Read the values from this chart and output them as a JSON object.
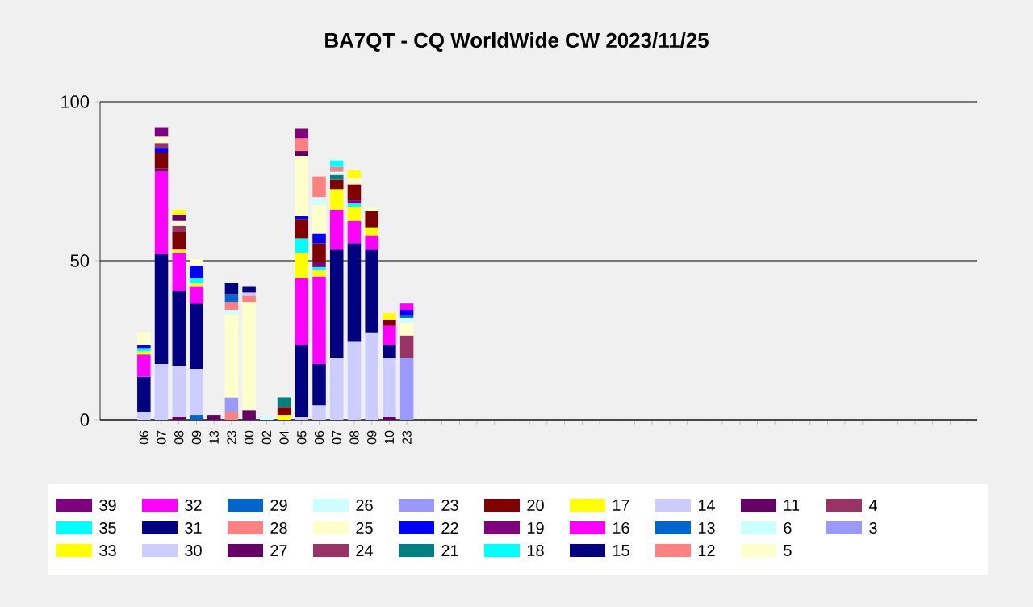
{
  "chart_data": {
    "type": "bar",
    "title": "BA7QT - CQ WorldWide CW 2023/11/25",
    "stacked": true,
    "grid": "y",
    "legend": "bottom",
    "ylim": [
      0,
      100
    ],
    "yticks": [
      0,
      50,
      100
    ],
    "categories": [
      "06",
      "07",
      "08",
      "09",
      "13",
      "23",
      "00",
      "02",
      "04",
      "05",
      "06",
      "07",
      "08",
      "09",
      "10",
      "23",
      null,
      null,
      null,
      null,
      null,
      null,
      null,
      null,
      null,
      null,
      null,
      null,
      null,
      null,
      null,
      null,
      null,
      null,
      null,
      null,
      null,
      null,
      null,
      null,
      null,
      null,
      null,
      null,
      null,
      null,
      null,
      null
    ],
    "series": [
      {
        "name": "3",
        "color": "#9999ff",
        "values": [
          null,
          null,
          null,
          null,
          null,
          null,
          null,
          null,
          null,
          null,
          null,
          null,
          null,
          null,
          null,
          19.5,
          null,
          null,
          null,
          null,
          null,
          null,
          null,
          null,
          null,
          null,
          null,
          null,
          null,
          null,
          null,
          null,
          null,
          null,
          null,
          null,
          null,
          null,
          null,
          null,
          null,
          null,
          null,
          null,
          null,
          null,
          null,
          null
        ]
      },
      {
        "name": "4",
        "color": "#993366",
        "values": [
          null,
          null,
          null,
          null,
          null,
          null,
          null,
          null,
          null,
          null,
          null,
          null,
          null,
          null,
          null,
          7,
          null,
          null,
          null,
          null,
          null,
          null,
          null,
          null,
          null,
          null,
          null,
          null,
          null,
          null,
          null,
          null,
          null,
          null,
          null,
          null,
          null,
          null,
          null,
          null,
          null,
          null,
          null,
          null,
          null,
          null,
          null,
          null
        ]
      },
      {
        "name": "5",
        "color": "#ffffcc",
        "values": [
          null,
          null,
          null,
          null,
          null,
          null,
          null,
          null,
          null,
          null,
          null,
          null,
          null,
          null,
          null,
          4,
          null,
          null,
          null,
          null,
          null,
          null,
          null,
          null,
          null,
          null,
          null,
          null,
          null,
          null,
          null,
          null,
          null,
          null,
          null,
          null,
          null,
          null,
          null,
          null,
          null,
          null,
          null,
          null,
          null,
          null,
          null,
          null
        ]
      },
      {
        "name": "6",
        "color": "#ccffff",
        "values": [
          null,
          null,
          null,
          null,
          null,
          null,
          null,
          null,
          null,
          null,
          null,
          null,
          null,
          null,
          null,
          1.5,
          null,
          null,
          null,
          null,
          null,
          null,
          null,
          null,
          null,
          null,
          null,
          null,
          null,
          null,
          null,
          null,
          null,
          null,
          null,
          null,
          null,
          null,
          null,
          null,
          null,
          null,
          null,
          null,
          null,
          null,
          null,
          null
        ]
      },
      {
        "name": "11",
        "color": "#660066",
        "values": [
          null,
          null,
          1,
          null,
          1.5,
          null,
          3,
          null,
          null,
          null,
          null,
          null,
          null,
          null,
          1,
          null,
          null,
          null,
          null,
          null,
          null,
          null,
          null,
          null,
          null,
          null,
          null,
          null,
          null,
          null,
          null,
          null,
          null,
          null,
          null,
          null,
          null,
          null,
          null,
          null,
          null,
          null,
          null,
          null,
          null,
          null,
          null,
          null
        ]
      },
      {
        "name": "12",
        "color": "#ff8080",
        "values": [
          null,
          null,
          null,
          null,
          null,
          2.5,
          null,
          null,
          null,
          null,
          null,
          null,
          null,
          null,
          null,
          null,
          null,
          null,
          null,
          null,
          null,
          null,
          null,
          null,
          null,
          null,
          null,
          null,
          null,
          null,
          null,
          null,
          null,
          null,
          null,
          null,
          null,
          null,
          null,
          null,
          null,
          null,
          null,
          null,
          null,
          null,
          null,
          null
        ]
      },
      {
        "name": "13",
        "color": "#0066cc",
        "values": [
          null,
          null,
          null,
          1.5,
          null,
          null,
          null,
          null,
          null,
          null,
          null,
          null,
          null,
          null,
          null,
          1,
          null,
          null,
          null,
          null,
          null,
          null,
          null,
          null,
          null,
          null,
          null,
          null,
          null,
          null,
          null,
          null,
          null,
          null,
          null,
          null,
          null,
          null,
          null,
          null,
          null,
          null,
          null,
          null,
          null,
          null,
          null,
          null
        ]
      },
      {
        "name": "14",
        "color": "#ccccff",
        "values": [
          2.5,
          17.5,
          16,
          14.5,
          null,
          null,
          null,
          null,
          null,
          1,
          4.5,
          19.5,
          24.5,
          27.5,
          18.5,
          null,
          null,
          null,
          null,
          null,
          null,
          null,
          null,
          null,
          null,
          null,
          null,
          null,
          null,
          null,
          null,
          null,
          null,
          null,
          null,
          null,
          null,
          null,
          null,
          null,
          null,
          null,
          null,
          null,
          null,
          null,
          null,
          null
        ]
      },
      {
        "name": "15",
        "color": "#000080",
        "values": [
          11,
          34.5,
          23.5,
          20.5,
          null,
          null,
          null,
          null,
          null,
          22.5,
          13,
          34,
          31,
          26,
          4,
          null,
          null,
          null,
          null,
          null,
          null,
          null,
          null,
          null,
          null,
          null,
          null,
          null,
          null,
          null,
          null,
          null,
          null,
          null,
          null,
          null,
          null,
          null,
          null,
          null,
          null,
          null,
          null,
          null,
          null,
          null,
          null,
          null
        ]
      },
      {
        "name": "16",
        "color": "#ff00ff",
        "values": [
          7,
          26,
          12,
          5.5,
          null,
          null,
          null,
          null,
          null,
          21,
          27.5,
          12.5,
          7,
          4.5,
          6,
          null,
          null,
          null,
          null,
          null,
          null,
          null,
          null,
          null,
          null,
          null,
          null,
          null,
          null,
          null,
          null,
          null,
          null,
          null,
          null,
          null,
          null,
          null,
          null,
          null,
          null,
          null,
          null,
          null,
          null,
          null,
          null,
          null
        ]
      },
      {
        "name": "17",
        "color": "#ffff00",
        "values": [
          1,
          null,
          1,
          1,
          null,
          null,
          null,
          null,
          1.5,
          8,
          2,
          6.5,
          4.5,
          2.5,
          null,
          null,
          null,
          null,
          null,
          null,
          null,
          null,
          null,
          null,
          null,
          null,
          null,
          null,
          null,
          null,
          null,
          null,
          null,
          null,
          null,
          null,
          null,
          null,
          null,
          null,
          null,
          null,
          null,
          null,
          null,
          null,
          null,
          null
        ]
      },
      {
        "name": "18",
        "color": "#00ffff",
        "values": [
          1,
          null,
          null,
          1.5,
          null,
          null,
          null,
          null,
          null,
          4.5,
          1,
          null,
          1,
          null,
          null,
          null,
          null,
          null,
          null,
          null,
          null,
          null,
          null,
          null,
          null,
          null,
          null,
          null,
          null,
          null,
          null,
          null,
          null,
          null,
          null,
          null,
          null,
          null,
          null,
          null,
          null,
          null,
          null,
          null,
          null,
          null,
          null,
          null
        ]
      },
      {
        "name": "19",
        "color": "#800080",
        "values": [
          null,
          1,
          null,
          null,
          null,
          null,
          null,
          null,
          null,
          null,
          1.5,
          null,
          1,
          null,
          null,
          null,
          null,
          null,
          null,
          null,
          null,
          null,
          null,
          null,
          null,
          null,
          null,
          null,
          null,
          null,
          null,
          null,
          null,
          null,
          null,
          null,
          null,
          null,
          null,
          null,
          null,
          null,
          null,
          null,
          null,
          null,
          null,
          null
        ]
      },
      {
        "name": "20",
        "color": "#800000",
        "values": [
          null,
          5,
          5.5,
          null,
          null,
          null,
          null,
          null,
          2.5,
          6,
          6,
          3,
          5,
          5,
          2,
          null,
          null,
          null,
          null,
          null,
          null,
          null,
          null,
          null,
          null,
          null,
          null,
          null,
          null,
          null,
          null,
          null,
          null,
          null,
          null,
          null,
          null,
          null,
          null,
          null,
          null,
          null,
          null,
          null,
          null,
          null,
          null,
          null
        ]
      },
      {
        "name": "21",
        "color": "#008080",
        "values": [
          null,
          null,
          null,
          null,
          null,
          null,
          null,
          null,
          3,
          null,
          null,
          1.5,
          null,
          null,
          null,
          null,
          null,
          null,
          null,
          null,
          null,
          null,
          null,
          null,
          null,
          null,
          null,
          null,
          null,
          null,
          null,
          null,
          null,
          null,
          null,
          null,
          null,
          null,
          null,
          null,
          null,
          null,
          null,
          null,
          null,
          null,
          null,
          null
        ]
      },
      {
        "name": "22",
        "color": "#0000ff",
        "values": [
          1,
          1.5,
          null,
          4,
          null,
          null,
          null,
          null,
          null,
          1,
          3,
          null,
          null,
          null,
          null,
          1.5,
          null,
          null,
          null,
          null,
          null,
          null,
          null,
          null,
          null,
          null,
          null,
          null,
          null,
          null,
          null,
          null,
          null,
          null,
          null,
          null,
          null,
          null,
          null,
          null,
          null,
          null,
          null,
          null,
          null,
          null,
          null,
          null
        ]
      },
      {
        "name": "23",
        "color": "#9999ff",
        "values": [
          null,
          null,
          null,
          null,
          null,
          4.5,
          null,
          null,
          null,
          null,
          null,
          null,
          null,
          null,
          null,
          null,
          null,
          null,
          null,
          null,
          null,
          null,
          null,
          null,
          null,
          null,
          null,
          null,
          null,
          null,
          null,
          null,
          null,
          null,
          null,
          null,
          null,
          null,
          null,
          null,
          null,
          null,
          null,
          null,
          null,
          null,
          null,
          null
        ]
      },
      {
        "name": "24",
        "color": "#993366",
        "values": [
          null,
          1.5,
          2,
          null,
          null,
          null,
          null,
          null,
          null,
          null,
          null,
          null,
          null,
          null,
          null,
          null,
          null,
          null,
          null,
          null,
          null,
          null,
          null,
          null,
          null,
          null,
          null,
          null,
          null,
          null,
          null,
          null,
          null,
          null,
          null,
          null,
          null,
          null,
          null,
          null,
          null,
          null,
          null,
          null,
          null,
          null,
          null,
          null
        ]
      },
      {
        "name": "25",
        "color": "#ffffcc",
        "values": [
          4,
          2,
          1.5,
          2,
          null,
          26,
          34,
          null,
          null,
          19,
          9,
          null,
          2,
          1.5,
          null,
          null,
          null,
          null,
          null,
          null,
          null,
          null,
          null,
          null,
          null,
          null,
          null,
          null,
          null,
          null,
          null,
          null,
          null,
          null,
          null,
          null,
          null,
          null,
          null,
          null,
          null,
          null,
          null,
          null,
          null,
          null,
          null,
          null
        ]
      },
      {
        "name": "26",
        "color": "#ccffff",
        "values": [
          null,
          null,
          null,
          null,
          null,
          1.5,
          null,
          1,
          null,
          null,
          2.5,
          1,
          null,
          null,
          null,
          null,
          null,
          null,
          null,
          null,
          null,
          null,
          null,
          null,
          null,
          null,
          null,
          null,
          null,
          null,
          null,
          null,
          null,
          null,
          null,
          null,
          null,
          null,
          null,
          null,
          null,
          null,
          null,
          null,
          null,
          null,
          null,
          null
        ]
      },
      {
        "name": "27",
        "color": "#660066",
        "values": [
          null,
          null,
          2,
          null,
          null,
          null,
          null,
          null,
          null,
          1.5,
          null,
          null,
          null,
          null,
          null,
          null,
          null,
          null,
          null,
          null,
          null,
          null,
          null,
          null,
          null,
          null,
          null,
          null,
          null,
          null,
          null,
          null,
          null,
          null,
          null,
          null,
          null,
          null,
          null,
          null,
          null,
          null,
          null,
          null,
          null,
          null,
          null,
          null
        ]
      },
      {
        "name": "28",
        "color": "#ff8080",
        "values": [
          null,
          null,
          null,
          null,
          null,
          2.5,
          2,
          null,
          null,
          4,
          6.5,
          1.5,
          null,
          null,
          null,
          null,
          null,
          null,
          null,
          null,
          null,
          null,
          null,
          null,
          null,
          null,
          null,
          null,
          null,
          null,
          null,
          null,
          null,
          null,
          null,
          null,
          null,
          null,
          null,
          null,
          null,
          null,
          null,
          null,
          null,
          null,
          null,
          null
        ]
      },
      {
        "name": "29",
        "color": "#0066cc",
        "values": [
          null,
          null,
          null,
          null,
          null,
          2.5,
          null,
          null,
          null,
          null,
          null,
          null,
          null,
          null,
          null,
          null,
          null,
          null,
          null,
          null,
          null,
          null,
          null,
          null,
          null,
          null,
          null,
          null,
          null,
          null,
          null,
          null,
          null,
          null,
          null,
          null,
          null,
          null,
          null,
          null,
          null,
          null,
          null,
          null,
          null,
          null,
          null,
          null
        ]
      },
      {
        "name": "30",
        "color": "#ccccff",
        "values": [
          null,
          null,
          null,
          null,
          null,
          null,
          1,
          null,
          null,
          null,
          null,
          null,
          null,
          null,
          null,
          null,
          null,
          null,
          null,
          null,
          null,
          null,
          null,
          null,
          null,
          null,
          null,
          null,
          null,
          null,
          null,
          null,
          null,
          null,
          null,
          null,
          null,
          null,
          null,
          null,
          null,
          null,
          null,
          null,
          null,
          null,
          null,
          null
        ]
      },
      {
        "name": "31",
        "color": "#000080",
        "values": [
          null,
          null,
          null,
          null,
          null,
          3.5,
          2,
          null,
          null,
          null,
          null,
          null,
          null,
          null,
          null,
          null,
          null,
          null,
          null,
          null,
          null,
          null,
          null,
          null,
          null,
          null,
          null,
          null,
          null,
          null,
          null,
          null,
          null,
          null,
          null,
          null,
          null,
          null,
          null,
          null,
          null,
          null,
          null,
          null,
          null,
          null,
          null,
          null
        ]
      },
      {
        "name": "32",
        "color": "#ff00ff",
        "values": [
          null,
          null,
          null,
          null,
          null,
          null,
          null,
          null,
          null,
          null,
          null,
          null,
          null,
          null,
          null,
          2,
          null,
          null,
          null,
          null,
          null,
          null,
          null,
          null,
          null,
          null,
          null,
          null,
          null,
          null,
          null,
          null,
          null,
          null,
          null,
          null,
          null,
          null,
          null,
          null,
          null,
          null,
          null,
          null,
          null,
          null,
          null,
          null
        ]
      },
      {
        "name": "33",
        "color": "#ffff00",
        "values": [
          null,
          null,
          1.5,
          null,
          null,
          null,
          null,
          null,
          null,
          null,
          null,
          null,
          2.5,
          null,
          2,
          null,
          null,
          null,
          null,
          null,
          null,
          null,
          null,
          null,
          null,
          null,
          null,
          null,
          null,
          null,
          null,
          null,
          null,
          null,
          null,
          null,
          null,
          null,
          null,
          null,
          null,
          null,
          null,
          null,
          null,
          null,
          null,
          null
        ]
      },
      {
        "name": "35",
        "color": "#00ffff",
        "values": [
          null,
          null,
          null,
          null,
          null,
          null,
          null,
          null,
          null,
          null,
          null,
          2,
          null,
          null,
          null,
          null,
          null,
          null,
          null,
          null,
          null,
          null,
          null,
          null,
          null,
          null,
          null,
          null,
          null,
          null,
          null,
          null,
          null,
          null,
          null,
          null,
          null,
          null,
          null,
          null,
          null,
          null,
          null,
          null,
          null,
          null,
          null,
          null
        ]
      },
      {
        "name": "39",
        "color": "#800080",
        "values": [
          null,
          3,
          null,
          null,
          null,
          null,
          null,
          null,
          null,
          3,
          null,
          null,
          null,
          null,
          null,
          null,
          null,
          null,
          null,
          null,
          null,
          null,
          null,
          null,
          null,
          null,
          null,
          null,
          null,
          null,
          null,
          null,
          null,
          null,
          null,
          null,
          null,
          null,
          null,
          null,
          null,
          null,
          null,
          null,
          null,
          null,
          null,
          null
        ]
      }
    ]
  }
}
